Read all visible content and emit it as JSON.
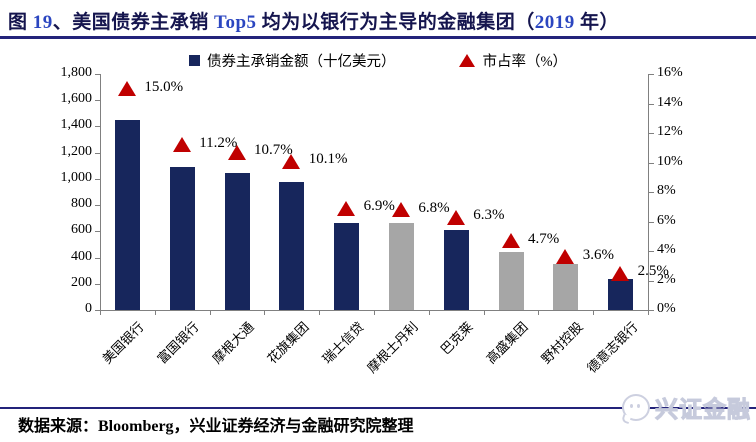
{
  "title": {
    "full": "图 19、美国债券主承销 Top5 均为以银行为主导的金融集团（2019 年）",
    "parts": [
      {
        "text": "图 ",
        "style": "cn"
      },
      {
        "text": "19",
        "style": "num"
      },
      {
        "text": "、美国债券主承销 ",
        "style": "cn"
      },
      {
        "text": "Top5",
        "style": "num"
      },
      {
        "text": " 均为以银行为主导的金融集团（",
        "style": "cn"
      },
      {
        "text": "2019",
        "style": "num"
      },
      {
        "text": " 年）",
        "style": "cn"
      }
    ]
  },
  "colors": {
    "navy": "#17265C",
    "gray": "#A6A6A6",
    "red": "#C00000",
    "axis": "#808080",
    "line": "#23237A",
    "title_navy": "#15154E",
    "num_blue": "#2B46C0"
  },
  "chart_data": {
    "type": "bar",
    "title": "美国债券主承销 Top5 均为以银行为主导的金融集团（2019 年）",
    "categories": [
      "美国银行",
      "富国银行",
      "摩根大通",
      "花旗集团",
      "瑞士信贷",
      "摩根士丹利",
      "巴克莱",
      "高盛集团",
      "野村控股",
      "德意志银行"
    ],
    "series": [
      {
        "name": "债券主承销金额（十亿美元）",
        "type": "bar",
        "axis": "left",
        "values": [
          1450,
          1090,
          1045,
          975,
          665,
          660,
          610,
          445,
          350,
          235
        ],
        "bar_colors": [
          "navy",
          "navy",
          "navy",
          "navy",
          "navy",
          "gray",
          "navy",
          "gray",
          "gray",
          "navy"
        ]
      },
      {
        "name": "市占率（%）",
        "type": "triangle-marker",
        "axis": "right",
        "values": [
          15.0,
          11.2,
          10.7,
          10.1,
          6.9,
          6.8,
          6.3,
          4.7,
          3.6,
          2.5
        ],
        "labels": [
          "15.0%",
          "11.2%",
          "10.7%",
          "10.1%",
          "6.9%",
          "6.8%",
          "6.3%",
          "4.7%",
          "3.6%",
          "2.5%"
        ],
        "color": "red"
      }
    ],
    "left_axis": {
      "min": 0,
      "max": 1800,
      "step": 200,
      "tick_labels": [
        "0",
        "200",
        "400",
        "600",
        "800",
        "1,000",
        "1,200",
        "1,400",
        "1,600",
        "1,800"
      ]
    },
    "right_axis": {
      "min": 0,
      "max": 16,
      "step": 2,
      "tick_labels": [
        "0%",
        "2%",
        "4%",
        "6%",
        "8%",
        "10%",
        "12%",
        "14%",
        "16%"
      ]
    },
    "grid": false,
    "legend_position": "top"
  },
  "footer": {
    "source_text": "数据来源：Bloomberg，兴业证券经济与金融研究院整理"
  },
  "logo": {
    "text": "兴证金融"
  }
}
